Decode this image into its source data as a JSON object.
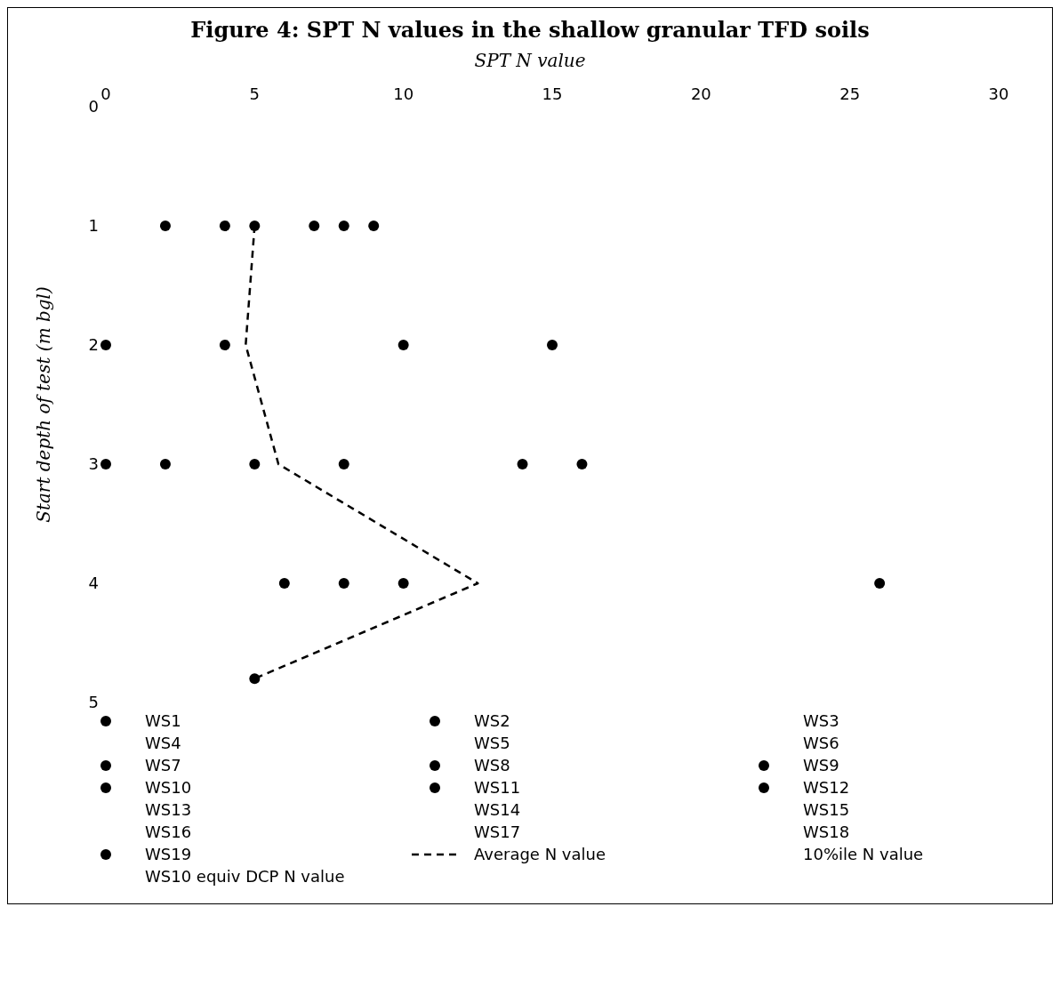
{
  "chart_data": {
    "type": "scatter",
    "title": "Figure 4: SPT N values in the shallow granular TFD soils",
    "xlabel": "SPT N value",
    "ylabel": "Start depth of test (m bgl)",
    "xlim": [
      0,
      30
    ],
    "xticks": [
      0,
      5,
      10,
      15,
      20,
      25,
      30
    ],
    "ylim": [
      5,
      0
    ],
    "yticks": [
      0,
      1,
      2,
      3,
      4,
      5
    ],
    "legend": "bottom",
    "series": [
      {
        "color": "#000000",
        "marker": "circle",
        "x": [
          2,
          4,
          5,
          7,
          8,
          9,
          0,
          4,
          10,
          15,
          0,
          2,
          5,
          8,
          14,
          16,
          6,
          8,
          10,
          26,
          5
        ],
        "values": [
          1,
          1,
          1,
          1,
          1,
          1,
          2,
          2,
          2,
          2,
          3,
          3,
          3,
          3,
          3,
          3,
          4,
          4,
          4,
          4,
          4.8
        ]
      },
      {
        "name": "WS1",
        "color": "#000000",
        "marker": "circle"
      },
      {
        "name": "WS2",
        "color": "#000000",
        "marker": "circle"
      },
      {
        "name": "WS3",
        "marker": "none"
      },
      {
        "name": "WS4",
        "marker": "none"
      },
      {
        "name": "WS5",
        "marker": "none"
      },
      {
        "name": "WS6",
        "marker": "none"
      },
      {
        "name": "WS7",
        "color": "#000000",
        "marker": "circle"
      },
      {
        "name": "WS8",
        "color": "#000000",
        "marker": "circle"
      },
      {
        "name": "WS9",
        "color": "#000000",
        "marker": "circle"
      },
      {
        "name": "WS10",
        "color": "#000000",
        "marker": "circle"
      },
      {
        "name": "WS11",
        "color": "#000000",
        "marker": "circle"
      },
      {
        "name": "WS12",
        "color": "#000000",
        "marker": "circle"
      },
      {
        "name": "WS13",
        "marker": "none"
      },
      {
        "name": "WS14",
        "marker": "none"
      },
      {
        "name": "WS15",
        "marker": "none"
      },
      {
        "name": "WS16",
        "marker": "none"
      },
      {
        "name": "WS17",
        "marker": "none"
      },
      {
        "name": "WS18",
        "marker": "none"
      },
      {
        "name": "WS19",
        "color": "#000000",
        "marker": "circle"
      },
      {
        "name": "Average N value",
        "type": "line",
        "color": "#000000",
        "marker": "none",
        "line_style": "dashed",
        "x": [
          5,
          4.7,
          5.8,
          12.5,
          5
        ],
        "values": [
          1,
          2,
          3,
          4,
          4.8
        ]
      },
      {
        "name": "10%ile N value",
        "marker": "none"
      },
      {
        "name": "WS10 equiv DCP N value",
        "marker": "none"
      }
    ]
  }
}
